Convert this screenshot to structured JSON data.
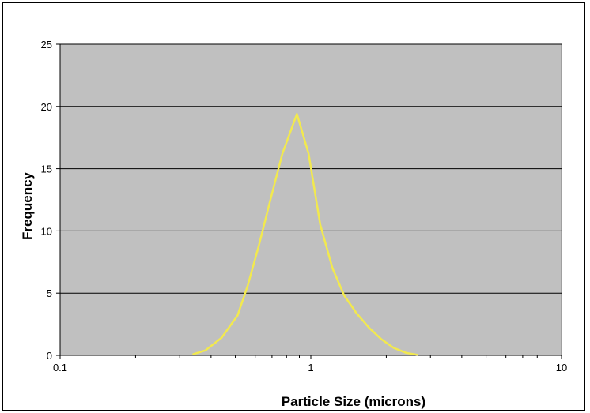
{
  "chart_data": {
    "type": "line",
    "title": "",
    "xlabel": "Particle Size (microns)",
    "ylabel": "Frequency",
    "x_scale": "log",
    "xlim": [
      0.1,
      10
    ],
    "ylim": [
      0,
      25
    ],
    "x_ticks": [
      0.1,
      1,
      10
    ],
    "x_tick_labels": [
      "0.1",
      "1",
      "10"
    ],
    "y_ticks": [
      0,
      5,
      10,
      15,
      20,
      25
    ],
    "y_tick_labels": [
      "0",
      "5",
      "10",
      "15",
      "20",
      "25"
    ],
    "grid": "horizontal",
    "legend": "none",
    "series": [
      {
        "color": "#f2e94e",
        "x": [
          0.34,
          0.38,
          0.44,
          0.51,
          0.56,
          0.62,
          0.69,
          0.77,
          0.88,
          0.98,
          1.09,
          1.22,
          1.36,
          1.52,
          1.71,
          1.91,
          2.14,
          2.4,
          2.65
        ],
        "y": [
          0.1,
          0.4,
          1.4,
          3.2,
          5.6,
          8.8,
          12.5,
          16.2,
          19.4,
          16.2,
          10.5,
          7.0,
          4.8,
          3.4,
          2.2,
          1.3,
          0.6,
          0.2,
          0.05
        ]
      }
    ]
  },
  "colors": {
    "plot_background": "#c0c0c0",
    "gridline": "#000000",
    "series_line": "#f2e94e"
  }
}
